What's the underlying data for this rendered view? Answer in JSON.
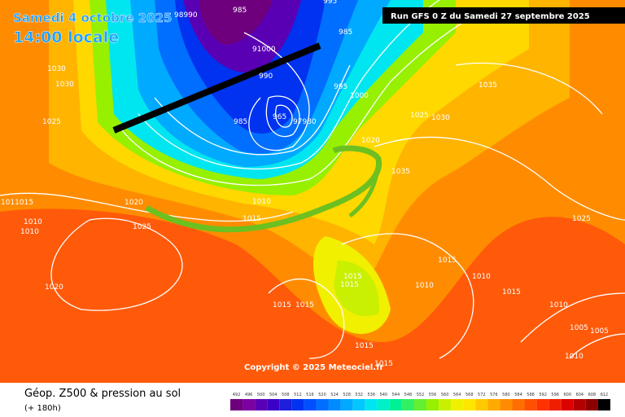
{
  "header": {
    "valid_date": "Samedi 4 octobre 2025",
    "local_time": "14:00 locale",
    "run": "Run GFS 0 Z du Samedi 27 septembre 2025",
    "copyright": "Copyright © 2025 Meteociel.fr"
  },
  "footer": {
    "title": "Géop. Z500 & pression au sol",
    "lead": "(+ 180h)"
  },
  "colorbar": {
    "labels": [
      "492",
      "496",
      "500",
      "504",
      "508",
      "512",
      "516",
      "520",
      "524",
      "528",
      "532",
      "536",
      "540",
      "544",
      "548",
      "552",
      "556",
      "560",
      "564",
      "568",
      "572",
      "576",
      "580",
      "584",
      "588",
      "592",
      "596",
      "600",
      "604",
      "608",
      "612"
    ],
    "colors": [
      "#6e007e",
      "#7d00a0",
      "#5a00b4",
      "#3c00c8",
      "#1e1edc",
      "#0032f0",
      "#0050ff",
      "#006eff",
      "#008cff",
      "#00aaff",
      "#00c8ff",
      "#00e6f0",
      "#00f0c8",
      "#00f096",
      "#32f064",
      "#64f032",
      "#96f000",
      "#c8f000",
      "#f0f000",
      "#ffe600",
      "#ffc800",
      "#ffaa00",
      "#ff8c00",
      "#ff6e00",
      "#ff5000",
      "#ff3200",
      "#f01e00",
      "#dc0000",
      "#b40000",
      "#8c0000",
      "#000000"
    ]
  },
  "isobar_labels": [
    "985",
    "98990",
    "995",
    "985",
    "91000",
    "990",
    "995",
    "1000",
    "965",
    "985",
    "97980",
    "1030",
    "1030",
    "1025",
    "1035",
    "1025",
    "1030",
    "1020",
    "1035",
    "1020",
    "1025",
    "1010",
    "1015",
    "1011015",
    "1010",
    "1010",
    "1020",
    "1025",
    "1015",
    "1010",
    "1015",
    "1015",
    "1010",
    "1015",
    "1015",
    "1015",
    "1010",
    "1005",
    "1005",
    "1010",
    "1015",
    "1015"
  ]
}
